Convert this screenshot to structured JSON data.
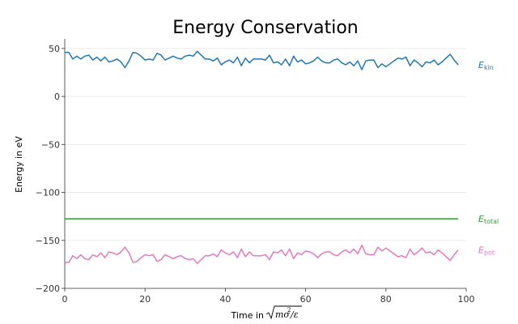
{
  "chart_data": {
    "type": "line",
    "title": "Energy Conservation",
    "xlabel_prefix": "Time in",
    "ylabel": "Energy in eV",
    "xlim": [
      0,
      100
    ],
    "ylim": [
      -200,
      60
    ],
    "x_ticks": [
      0,
      20,
      40,
      60,
      80,
      100
    ],
    "y_ticks": [
      50,
      0,
      -50,
      -100,
      -150,
      -200
    ],
    "y_tick_labels": [
      "50",
      "0",
      "−50",
      "−100",
      "−150",
      "−200"
    ],
    "grid": "horizontal",
    "legend_placement": "inline-right",
    "series": [
      {
        "key": "kin",
        "name": "E",
        "subscript": "kin",
        "color": "#1f77b4",
        "x": [
          0,
          1,
          2,
          3,
          4,
          5,
          6,
          7,
          8,
          9,
          10,
          11,
          12,
          13,
          14,
          15,
          16,
          17,
          18,
          19,
          20,
          21,
          22,
          23,
          24,
          25,
          26,
          27,
          28,
          29,
          30,
          31,
          32,
          33,
          34,
          35,
          36,
          37,
          38,
          39,
          40,
          41,
          42,
          43,
          44,
          45,
          46,
          47,
          48,
          49,
          50,
          51,
          52,
          53,
          54,
          55,
          56,
          57,
          58,
          59,
          60,
          61,
          62,
          63,
          64,
          65,
          66,
          67,
          68,
          69,
          70,
          71,
          72,
          73,
          74,
          75,
          76,
          77,
          78,
          79,
          80,
          81,
          82,
          83,
          84,
          85,
          86,
          87,
          88,
          89,
          90,
          91,
          92,
          93,
          94,
          95,
          96,
          97,
          98
        ],
        "values": [
          46,
          46,
          39,
          42,
          39,
          42,
          43,
          38,
          41,
          37,
          41,
          36,
          37,
          39,
          36,
          30,
          37,
          46,
          45,
          42,
          38,
          39,
          38,
          45,
          43,
          38,
          40,
          42,
          40,
          39,
          42,
          43,
          42,
          47,
          43,
          39,
          39,
          37,
          40,
          33,
          36,
          38,
          35,
          41,
          32,
          40,
          35,
          39,
          39,
          39,
          38,
          43,
          35,
          36,
          33,
          39,
          32,
          42,
          36,
          38,
          34,
          35,
          37,
          41,
          37,
          35,
          35,
          38,
          39,
          35,
          33,
          36,
          32,
          37,
          28,
          37,
          38,
          38,
          30,
          34,
          31,
          34,
          37,
          40,
          39,
          41,
          32,
          38,
          35,
          31,
          36,
          35,
          38,
          33,
          36,
          40,
          44,
          38,
          33
        ]
      },
      {
        "key": "total",
        "name": "E",
        "subscript": "total",
        "color": "#2ca02c",
        "x": [
          0,
          98
        ],
        "values": [
          -127.5,
          -127.5
        ]
      },
      {
        "key": "pot",
        "name": "E",
        "subscript": "pot",
        "color": "#e377c2",
        "x": [
          0,
          1,
          2,
          3,
          4,
          5,
          6,
          7,
          8,
          9,
          10,
          11,
          12,
          13,
          14,
          15,
          16,
          17,
          18,
          19,
          20,
          21,
          22,
          23,
          24,
          25,
          26,
          27,
          28,
          29,
          30,
          31,
          32,
          33,
          34,
          35,
          36,
          37,
          38,
          39,
          40,
          41,
          42,
          43,
          44,
          45,
          46,
          47,
          48,
          49,
          50,
          51,
          52,
          53,
          54,
          55,
          56,
          57,
          58,
          59,
          60,
          61,
          62,
          63,
          64,
          65,
          66,
          67,
          68,
          69,
          70,
          71,
          72,
          73,
          74,
          75,
          76,
          77,
          78,
          79,
          80,
          81,
          82,
          83,
          84,
          85,
          86,
          87,
          88,
          89,
          90,
          91,
          92,
          93,
          94,
          95,
          96,
          97,
          98
        ],
        "values": [
          -173,
          -173,
          -166,
          -169,
          -165,
          -169,
          -170,
          -165,
          -167,
          -163,
          -168,
          -162,
          -163,
          -165,
          -162,
          -157,
          -163,
          -173,
          -172,
          -168,
          -165,
          -166,
          -165,
          -172,
          -170,
          -165,
          -167,
          -169,
          -167,
          -166,
          -169,
          -170,
          -169,
          -174,
          -170,
          -166,
          -166,
          -164,
          -167,
          -160,
          -163,
          -165,
          -162,
          -168,
          -159,
          -167,
          -162,
          -166,
          -166,
          -166,
          -165,
          -170,
          -162,
          -163,
          -160,
          -166,
          -159,
          -169,
          -163,
          -165,
          -161,
          -162,
          -164,
          -168,
          -164,
          -162,
          -162,
          -165,
          -166,
          -162,
          -160,
          -163,
          -159,
          -164,
          -155,
          -164,
          -165,
          -165,
          -157,
          -161,
          -158,
          -161,
          -164,
          -167,
          -166,
          -168,
          -159,
          -165,
          -162,
          -158,
          -163,
          -162,
          -165,
          -160,
          -163,
          -167,
          -171,
          -165,
          -160
        ]
      }
    ]
  }
}
